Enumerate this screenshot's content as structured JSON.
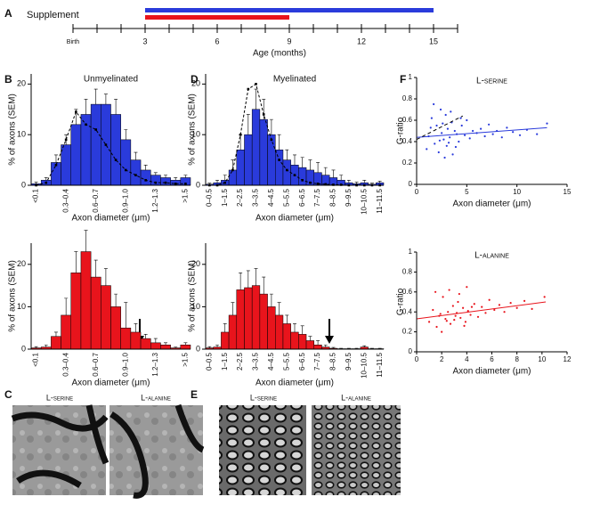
{
  "panel_labels": [
    "A",
    "B",
    "C",
    "D",
    "E",
    "F"
  ],
  "panel_C": {
    "labels": [
      "L-serine",
      "L-alanine"
    ]
  },
  "panel_E": {
    "labels": [
      "L-serine",
      "L-alanine"
    ]
  },
  "chart_data": [
    {
      "type": "timeline",
      "label": "Supplement",
      "xlabel": "Age (months)",
      "xlim": [
        0,
        16
      ],
      "xticks": [
        {
          "value": 0,
          "label": "Birth"
        },
        3,
        6,
        9,
        12,
        15
      ],
      "minor_xticks": [
        0,
        1,
        2,
        3,
        4,
        5,
        6,
        7,
        8,
        9,
        10,
        11,
        12,
        13,
        14,
        15,
        16
      ],
      "bars": [
        {
          "color": "#2a3bdb",
          "start": 3,
          "end": 15
        },
        {
          "color": "#e8141c",
          "start": 3,
          "end": 9
        }
      ]
    },
    {
      "type": "bar",
      "title": "Unmyelinated",
      "xlabel": "Axon diameter (μm)",
      "ylabel": "% of axons (SEM)",
      "categories": [
        "<0.1",
        null,
        null,
        "0.3–0.4",
        null,
        null,
        "0.6–0.7",
        null,
        null,
        "0.9–1.0",
        null,
        null,
        "1.2–1.3",
        null,
        null,
        ">1.5"
      ],
      "ylim": [
        0,
        22
      ],
      "yticks": [
        0,
        10,
        20
      ],
      "series": [
        {
          "type": "bar",
          "color": "#2a3bdb",
          "values": [
            0.3,
            1,
            4.5,
            8,
            12,
            14,
            16,
            16,
            14,
            9,
            5,
            3,
            2,
            1.5,
            1,
            1.5
          ],
          "errors": [
            0.3,
            0.5,
            1.5,
            2,
            3,
            3,
            3,
            2,
            3,
            2,
            1.5,
            1,
            0.5,
            0.5,
            0.5,
            0.5
          ]
        },
        {
          "type": "line",
          "color": "#000000",
          "dash": true,
          "values": [
            0,
            0.5,
            4,
            9,
            14.5,
            12,
            11,
            8,
            5,
            3,
            2,
            1,
            0.5,
            0.5,
            0.3,
            0.3
          ]
        }
      ]
    },
    {
      "type": "bar",
      "xlabel": "Axon diameter (μm)",
      "ylabel": "% of axons (SEM)",
      "categories": [
        "<0.1",
        null,
        null,
        "0.3–0.4",
        null,
        null,
        "0.6–0.7",
        null,
        null,
        "0.9–1.0",
        null,
        null,
        "1.2–1.3",
        null,
        null,
        ">1.5"
      ],
      "ylim": [
        0,
        25
      ],
      "yticks": [
        0,
        10,
        20
      ],
      "series": [
        {
          "type": "bar",
          "color": "#e8141c",
          "values": [
            0.3,
            0.5,
            3,
            8,
            18,
            23,
            17,
            15,
            10,
            5,
            4,
            2.5,
            1.5,
            1,
            0.3,
            1
          ],
          "errors": [
            0.3,
            0.5,
            1,
            4,
            5,
            5,
            4,
            4,
            3,
            6,
            2,
            1,
            1,
            0.5,
            0.2,
            0.5
          ]
        }
      ]
    },
    {
      "type": "bar",
      "title": "Myelinated",
      "xlabel": "Axon diameter (μm)",
      "ylabel": "% of axons (SEM)",
      "categories": [
        "0–0.5",
        null,
        "1–1.5",
        null,
        "2–2.5",
        null,
        "3–3.5",
        null,
        "4–4.5",
        null,
        "5–5.5",
        null,
        "6–6.5",
        null,
        "7–7.5",
        null,
        "8–8.5",
        null,
        "9–9.5",
        null,
        "10–10.5",
        null,
        "11–11.5"
      ],
      "ylim": [
        0,
        22
      ],
      "yticks": [
        0,
        10,
        20
      ],
      "series": [
        {
          "type": "bar",
          "color": "#2a3bdb",
          "values": [
            0.2,
            0.5,
            1,
            3,
            7,
            10,
            15,
            13,
            10,
            7,
            5,
            4,
            3.5,
            3,
            2.5,
            2,
            1.5,
            1,
            0.5,
            0.3,
            0.5,
            0.2,
            0.5
          ],
          "errors": [
            0.2,
            0.5,
            1,
            2,
            3,
            4,
            4,
            4,
            3,
            3,
            2,
            2,
            2,
            2,
            2,
            1.5,
            1.5,
            1,
            0.5,
            0.3,
            0.5,
            0.2,
            0.3
          ]
        },
        {
          "type": "line",
          "color": "#000000",
          "dash": true,
          "values": [
            0,
            0,
            0.5,
            3,
            10,
            19,
            20,
            14,
            9,
            5,
            3,
            2,
            1,
            0.5,
            0.3,
            0.2,
            0.1,
            0.1,
            0,
            0,
            0,
            0,
            0
          ]
        }
      ]
    },
    {
      "type": "bar",
      "xlabel": "Axon diameter (μm)",
      "ylabel": "% of axons (SEM)",
      "categories": [
        "0–0.5",
        null,
        "1–1.5",
        null,
        "2–2.5",
        null,
        "3–3.5",
        null,
        "4–4.5",
        null,
        "5–5.5",
        null,
        "6–6.5",
        null,
        "7–7.5",
        null,
        "8–8.5",
        null,
        "9–9.5",
        null,
        "10–10.5",
        null,
        "11–11.5"
      ],
      "ylim": [
        0,
        25
      ],
      "yticks": [
        0,
        10,
        20
      ],
      "series": [
        {
          "type": "bar",
          "color": "#e8141c",
          "values": [
            0.3,
            0.5,
            4,
            8,
            14,
            14.5,
            15,
            13,
            10,
            8,
            6,
            4,
            3.5,
            2,
            1,
            0.5,
            0.2,
            0.1,
            0.1,
            0.1,
            0.5,
            0.1,
            0.1
          ],
          "errors": [
            0.3,
            0.5,
            2,
            3,
            4,
            4,
            4,
            4,
            3,
            3,
            2,
            2,
            2,
            1,
            1,
            0.5,
            0.2,
            0.1,
            0.1,
            0.1,
            0.3,
            0.1,
            0.1
          ]
        }
      ]
    },
    {
      "type": "scatter",
      "title": "L-serine",
      "xlabel": "Axon diameter (μm)",
      "ylabel": "G-ratio",
      "color": "#2a3bdb",
      "xlim": [
        0,
        15
      ],
      "xticks": [
        0,
        5,
        10,
        15
      ],
      "ylim": [
        0,
        1
      ],
      "yticks": [
        0,
        0.2,
        0.4,
        0.6,
        0.8,
        1
      ],
      "x": [
        1.2,
        1.5,
        1.8,
        2.0,
        2.2,
        2.4,
        2.5,
        2.7,
        2.9,
        3.0,
        3.1,
        3.3,
        3.5,
        3.6,
        3.8,
        4.0,
        4.2,
        4.5,
        4.8,
        5.0,
        5.3,
        5.6,
        6.0,
        6.4,
        6.8,
        7.2,
        7.6,
        8.0,
        8.5,
        9.0,
        9.6,
        10.3,
        11.0,
        12.0,
        13.0,
        1.0,
        1.7,
        2.3,
        2.8,
        3.4,
        3.9,
        4.4,
        1.4,
        2.6,
        3.2
      ],
      "y": [
        0.45,
        0.62,
        0.38,
        0.55,
        0.3,
        0.7,
        0.48,
        0.42,
        0.65,
        0.36,
        0.52,
        0.44,
        0.58,
        0.28,
        0.5,
        0.47,
        0.4,
        0.55,
        0.46,
        0.6,
        0.43,
        0.5,
        0.48,
        0.52,
        0.45,
        0.56,
        0.47,
        0.5,
        0.44,
        0.53,
        0.49,
        0.46,
        0.51,
        0.47,
        0.57,
        0.33,
        0.75,
        0.41,
        0.25,
        0.68,
        0.35,
        0.62,
        0.53,
        0.57,
        0.39
      ],
      "fits": [
        {
          "color": "#2a3bdb",
          "dash": false,
          "x": [
            0,
            13
          ],
          "y": [
            0.44,
            0.53
          ]
        },
        {
          "color": "#000000",
          "dash": true,
          "x": [
            0,
            4.6
          ],
          "y": [
            0.42,
            0.64
          ]
        }
      ]
    },
    {
      "type": "scatter",
      "title": "L-alanine",
      "xlabel": "Axon diameter (μm)",
      "ylabel": "G-ratio",
      "color": "#e8141c",
      "xlim": [
        0,
        12
      ],
      "xticks": [
        0,
        2,
        4,
        6,
        8,
        10,
        12
      ],
      "ylim": [
        0,
        1
      ],
      "yticks": [
        0,
        0.2,
        0.4,
        0.6,
        0.8,
        1
      ],
      "x": [
        1.0,
        1.3,
        1.6,
        1.9,
        2.1,
        2.3,
        2.5,
        2.7,
        2.9,
        3.1,
        3.3,
        3.5,
        3.7,
        3.9,
        4.1,
        4.3,
        4.6,
        4.9,
        5.2,
        5.5,
        5.8,
        6.2,
        6.6,
        7.0,
        7.5,
        8.0,
        8.6,
        9.2,
        10.2,
        1.5,
        2.0,
        2.6,
        3.0,
        3.4,
        3.8,
        4.4,
        1.8,
        2.4,
        3.2,
        4.0
      ],
      "y": [
        0.3,
        0.42,
        0.25,
        0.38,
        0.55,
        0.33,
        0.4,
        0.28,
        0.46,
        0.36,
        0.5,
        0.34,
        0.44,
        0.3,
        0.41,
        0.37,
        0.48,
        0.35,
        0.45,
        0.39,
        0.52,
        0.42,
        0.47,
        0.4,
        0.49,
        0.44,
        0.51,
        0.43,
        0.55,
        0.6,
        0.2,
        0.62,
        0.32,
        0.58,
        0.26,
        0.45,
        0.36,
        0.31,
        0.39,
        0.65
      ],
      "fits": [
        {
          "color": "#e8141c",
          "dash": false,
          "x": [
            0,
            10.3
          ],
          "y": [
            0.33,
            0.5
          ]
        }
      ]
    }
  ]
}
